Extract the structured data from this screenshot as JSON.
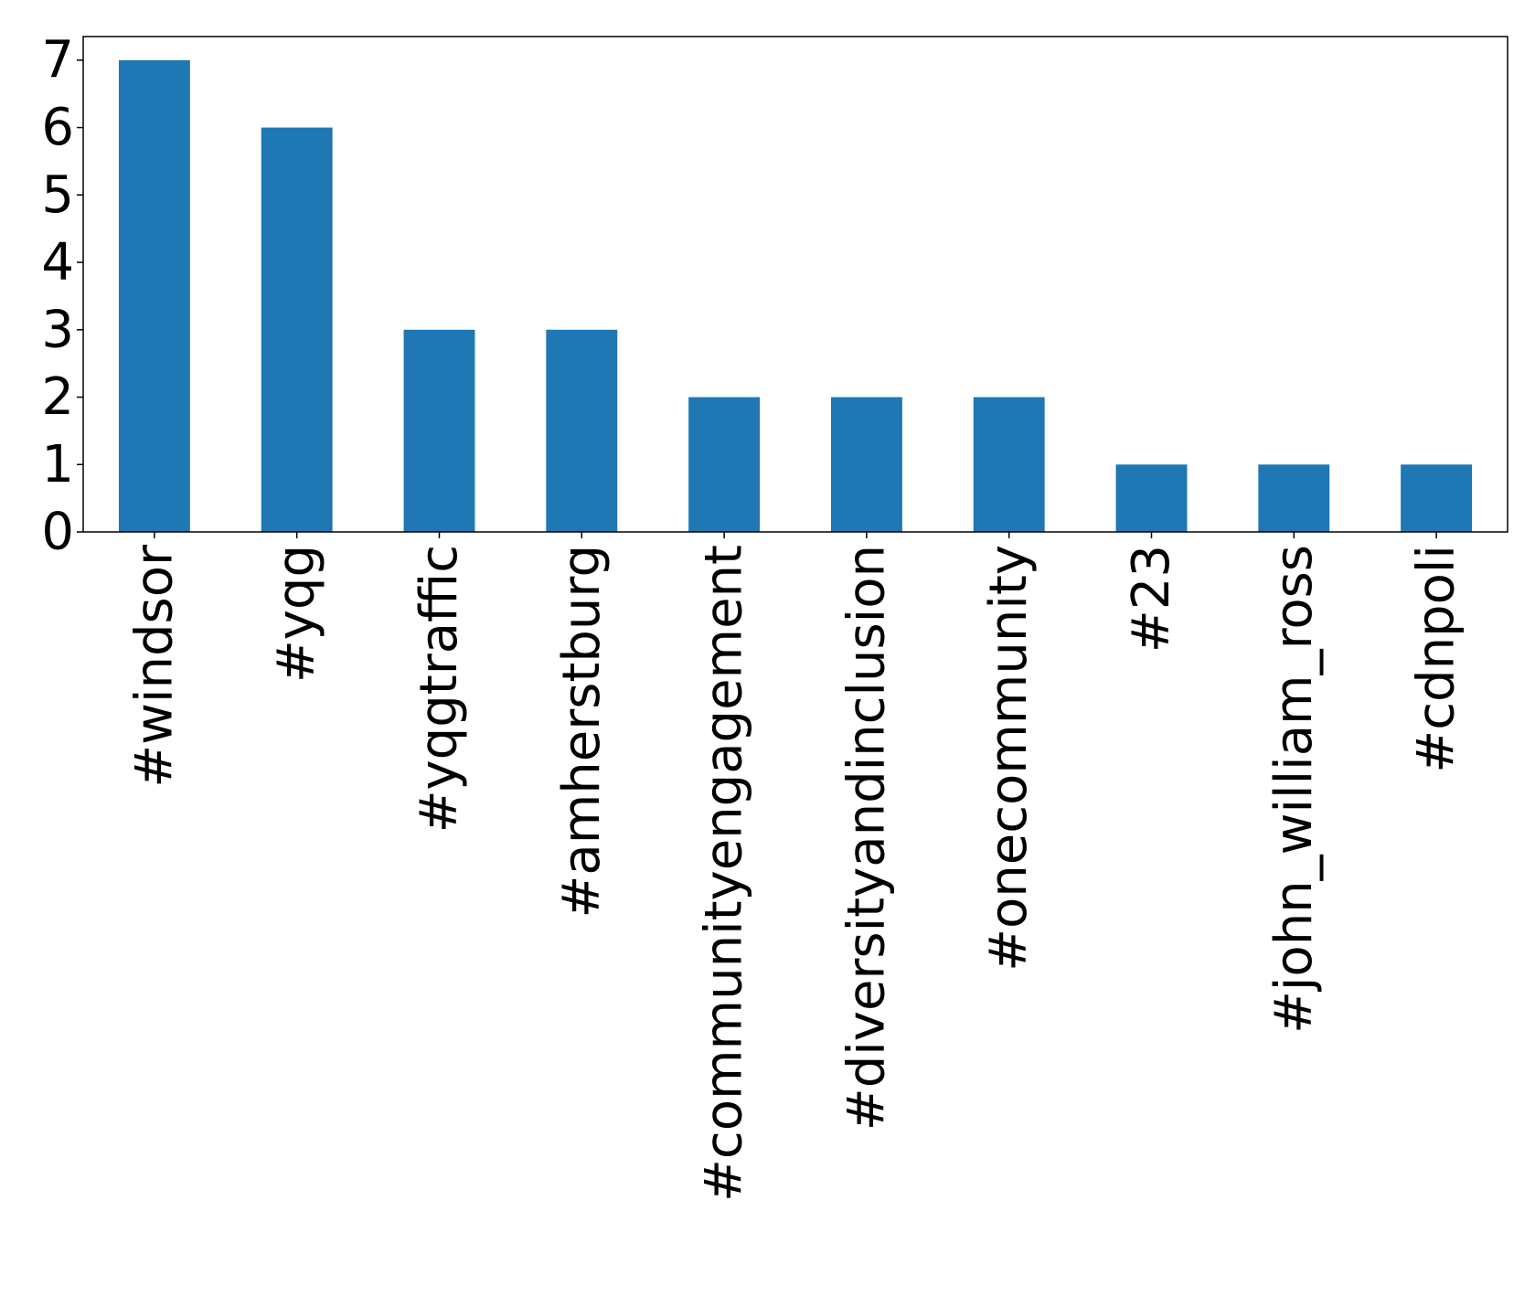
{
  "chart_data": {
    "type": "bar",
    "title": "",
    "xlabel": "",
    "ylabel": "",
    "categories": [
      "#windsor",
      "#yqg",
      "#yqgtraffic",
      "#amherstburg",
      "#communityengagement",
      "#diversityandinclusion",
      "#onecommunity",
      "#23",
      "#john_william_ross",
      "#cdnpoli"
    ],
    "values": [
      7,
      6,
      3,
      3,
      2,
      2,
      2,
      1,
      1,
      1
    ],
    "ylim": [
      0,
      7.35
    ],
    "yticks": [
      0,
      1,
      2,
      3,
      4,
      5,
      6,
      7
    ],
    "grid": false,
    "legend": "none",
    "bar_color": "#1f77b4"
  }
}
